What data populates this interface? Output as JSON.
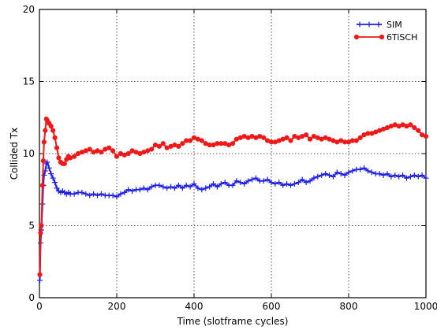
{
  "chart_data": {
    "type": "line",
    "title": "",
    "xlabel": "Time (slotframe cycles)",
    "ylabel": "Collided Tx",
    "xlim": [
      0,
      1000
    ],
    "ylim": [
      0,
      20
    ],
    "xticks": [
      0,
      200,
      400,
      600,
      800,
      1000
    ],
    "yticks": [
      0,
      5,
      10,
      15,
      20
    ],
    "grid": true,
    "legend_position": "top-right",
    "series": [
      {
        "name": "SIM",
        "color": "#1f1fe8",
        "marker": "plus",
        "x": [
          1,
          3,
          5,
          8,
          10,
          12,
          15,
          18,
          20,
          25,
          30,
          35,
          40,
          45,
          50,
          55,
          60,
          65,
          70,
          75,
          80,
          90,
          100,
          110,
          120,
          130,
          140,
          150,
          160,
          170,
          180,
          190,
          200,
          210,
          220,
          230,
          240,
          250,
          260,
          270,
          280,
          290,
          300,
          310,
          320,
          330,
          340,
          350,
          360,
          370,
          380,
          390,
          400,
          410,
          420,
          430,
          440,
          450,
          460,
          470,
          480,
          490,
          500,
          510,
          520,
          530,
          540,
          550,
          560,
          570,
          580,
          590,
          600,
          610,
          620,
          630,
          640,
          650,
          660,
          670,
          680,
          690,
          700,
          710,
          720,
          730,
          740,
          750,
          760,
          770,
          780,
          790,
          800,
          810,
          820,
          830,
          840,
          850,
          860,
          870,
          880,
          890,
          900,
          910,
          920,
          930,
          940,
          950,
          960,
          970,
          980,
          990,
          1000
        ],
        "y": [
          1.2,
          3.8,
          4.7,
          6.5,
          7.8,
          8.5,
          8.8,
          9.3,
          9.4,
          9.0,
          8.6,
          8.3,
          8.0,
          7.6,
          7.4,
          7.3,
          7.4,
          7.3,
          7.2,
          7.3,
          7.2,
          7.2,
          7.3,
          7.3,
          7.2,
          7.1,
          7.2,
          7.1,
          7.2,
          7.1,
          7.1,
          7.1,
          7.0,
          7.2,
          7.3,
          7.5,
          7.4,
          7.5,
          7.5,
          7.6,
          7.5,
          7.7,
          7.8,
          7.8,
          7.7,
          7.6,
          7.7,
          7.6,
          7.8,
          7.6,
          7.8,
          7.7,
          7.9,
          7.6,
          7.5,
          7.6,
          7.7,
          7.9,
          7.7,
          7.9,
          8.0,
          7.8,
          7.8,
          8.1,
          8.0,
          7.9,
          8.1,
          8.2,
          8.3,
          8.1,
          8.1,
          8.2,
          8.0,
          7.9,
          8.0,
          7.8,
          7.9,
          7.8,
          7.9,
          8.0,
          8.2,
          8.0,
          8.1,
          8.3,
          8.4,
          8.5,
          8.6,
          8.5,
          8.4,
          8.7,
          8.6,
          8.5,
          8.7,
          8.8,
          8.9,
          8.9,
          9.0,
          8.8,
          8.7,
          8.6,
          8.6,
          8.5,
          8.6,
          8.4,
          8.5,
          8.4,
          8.5,
          8.3,
          8.4,
          8.5,
          8.4,
          8.5,
          8.3
        ]
      },
      {
        "name": "6TiSCH",
        "color": "#f01818",
        "marker": "circle",
        "x": [
          1,
          3,
          5,
          8,
          10,
          12,
          15,
          18,
          20,
          25,
          30,
          35,
          40,
          45,
          50,
          55,
          60,
          65,
          70,
          75,
          80,
          90,
          100,
          110,
          120,
          130,
          140,
          150,
          160,
          170,
          180,
          190,
          200,
          210,
          220,
          230,
          240,
          250,
          260,
          270,
          280,
          290,
          300,
          310,
          320,
          330,
          340,
          350,
          360,
          370,
          380,
          390,
          400,
          410,
          420,
          430,
          440,
          450,
          460,
          470,
          480,
          490,
          500,
          510,
          520,
          530,
          540,
          550,
          560,
          570,
          580,
          590,
          600,
          610,
          620,
          630,
          640,
          650,
          660,
          670,
          680,
          690,
          700,
          710,
          720,
          730,
          740,
          750,
          760,
          770,
          780,
          790,
          800,
          810,
          820,
          830,
          840,
          850,
          860,
          870,
          880,
          890,
          900,
          910,
          920,
          930,
          940,
          950,
          960,
          970,
          980,
          990,
          1000
        ],
        "y": [
          1.6,
          4.5,
          5.0,
          7.8,
          9.5,
          10.8,
          11.6,
          12.4,
          12.3,
          12.1,
          11.9,
          11.6,
          11.1,
          10.4,
          9.7,
          9.4,
          9.3,
          9.3,
          9.6,
          9.8,
          9.7,
          9.8,
          10.0,
          10.1,
          10.2,
          10.3,
          10.1,
          10.2,
          10.1,
          10.3,
          10.4,
          10.2,
          9.8,
          10.0,
          9.9,
          10.0,
          10.2,
          10.1,
          10.0,
          10.1,
          10.2,
          10.3,
          10.6,
          10.5,
          10.7,
          10.4,
          10.5,
          10.6,
          10.5,
          10.7,
          10.9,
          10.9,
          11.1,
          11.0,
          10.9,
          10.7,
          10.6,
          10.6,
          10.7,
          10.7,
          10.7,
          10.6,
          10.7,
          11.0,
          11.1,
          11.2,
          11.1,
          11.2,
          11.1,
          11.2,
          11.1,
          10.9,
          10.8,
          10.8,
          10.9,
          11.0,
          11.1,
          10.9,
          11.2,
          11.1,
          11.2,
          11.3,
          11.0,
          11.2,
          11.1,
          11.0,
          11.1,
          11.0,
          10.9,
          10.8,
          10.9,
          10.8,
          10.8,
          10.9,
          10.9,
          11.1,
          11.3,
          11.4,
          11.4,
          11.5,
          11.6,
          11.7,
          11.8,
          11.9,
          12.0,
          11.9,
          12.0,
          11.9,
          12.0,
          11.8,
          11.6,
          11.3,
          11.2
        ]
      }
    ]
  }
}
